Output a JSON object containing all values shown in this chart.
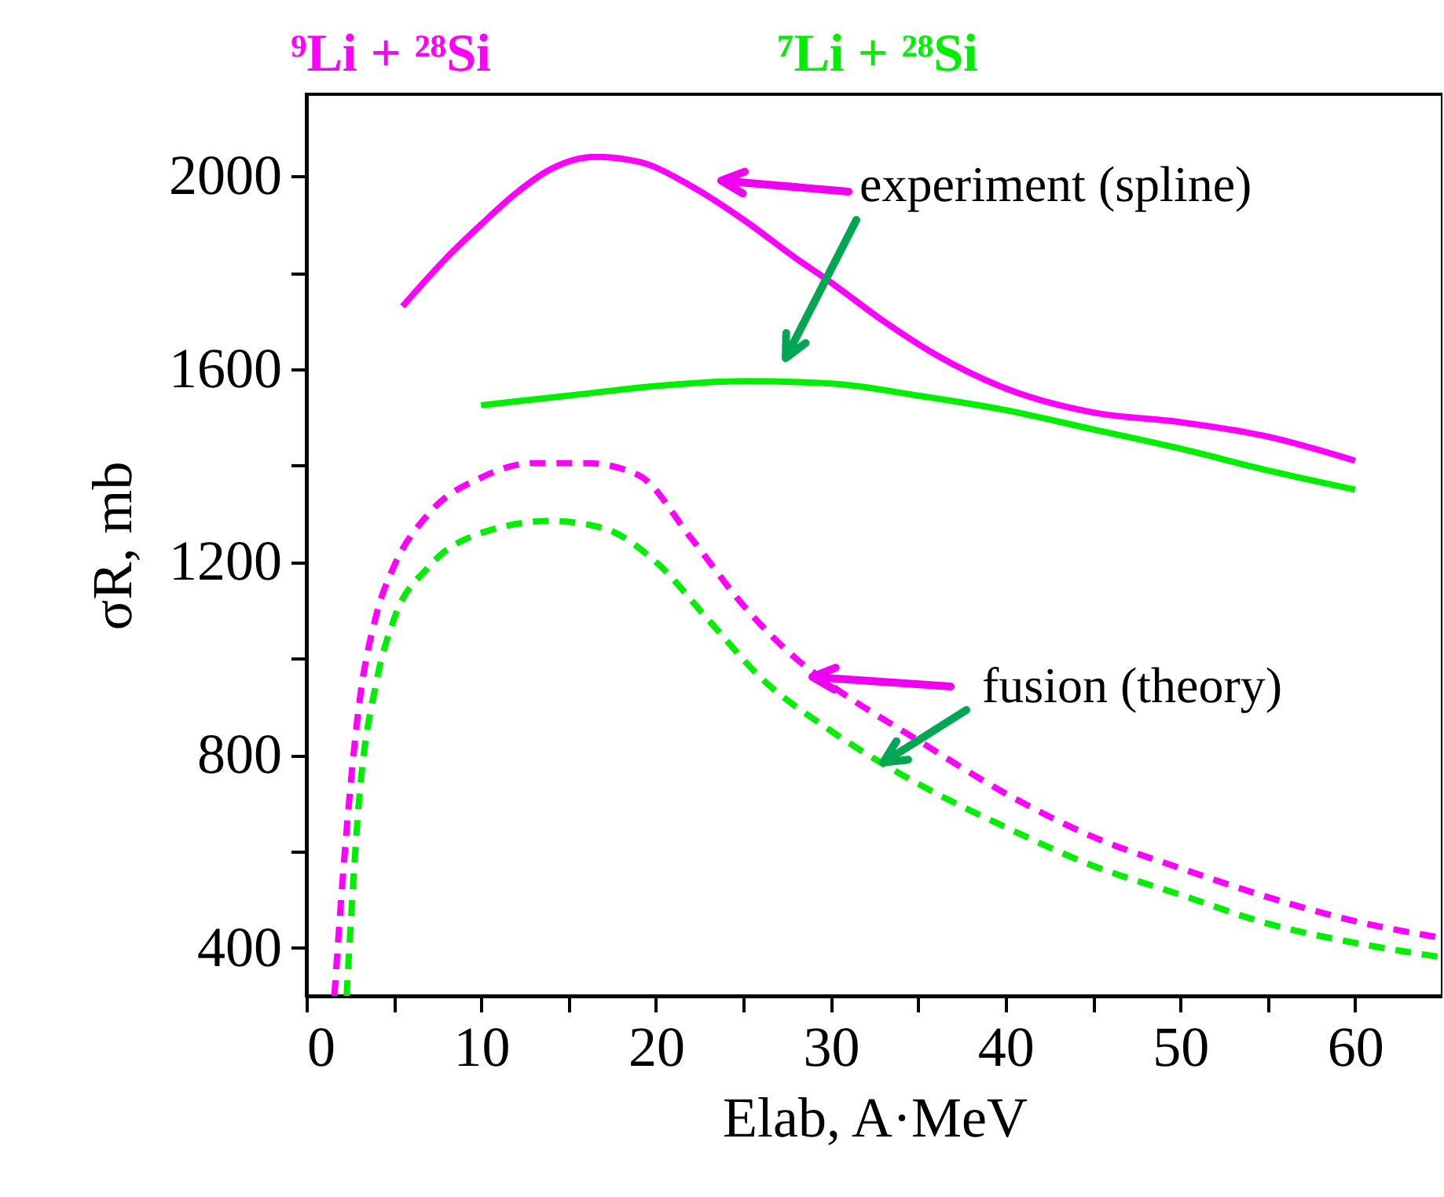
{
  "chart_data": {
    "type": "line",
    "xlabel": "Elab, A·MeV",
    "ylabel": "σR, mb",
    "xlim": [
      0,
      65
    ],
    "ylim": [
      300,
      2170
    ],
    "xticks": [
      0,
      {
        "value": 5,
        "label": null
      },
      10,
      {
        "value": 15,
        "label": null
      },
      20,
      {
        "value": 25,
        "label": null
      },
      30,
      {
        "value": 35,
        "label": null
      },
      40,
      {
        "value": 45,
        "label": null
      },
      50,
      {
        "value": 55,
        "label": null
      },
      60
    ],
    "yticks": [
      400,
      {
        "value": 600,
        "label": null
      },
      800,
      {
        "value": 1000,
        "label": null
      },
      1200,
      {
        "value": 1400,
        "label": null
      },
      1600,
      {
        "value": 1800,
        "label": null
      },
      2000
    ],
    "grid": false,
    "legend": "top",
    "annotations": [
      "experiment (spline)",
      {
        "text": "fusion (theory)",
        "x": 33,
        "y": 784
      }
    ],
    "series": [
      {
        "name": "⁹Li + ²⁸Si",
        "color": "#ff00ff",
        "line_style": "solid",
        "x": [
          5.5,
          8,
          10,
          12,
          14,
          16.5,
          19,
          22,
          25,
          28,
          30,
          33,
          36,
          40,
          45,
          50,
          55,
          60
        ],
        "values": [
          1730,
          1830,
          1900,
          1965,
          2015,
          2040,
          2030,
          1980,
          1910,
          1830,
          1780,
          1700,
          1630,
          1560,
          1510,
          1490,
          1460,
          1410
        ]
      },
      {
        "name": "⁷Li + ²⁸Si",
        "color": "#00ee00",
        "line_style": "solid",
        "x": [
          10,
          15,
          20,
          25,
          30,
          35,
          40,
          45,
          50,
          55,
          60
        ],
        "values": [
          1525,
          1545,
          1565,
          1575,
          1570,
          1545,
          1515,
          1475,
          1435,
          1390,
          1350
        ]
      },
      {
        "color": "#ff00ff",
        "line_style": "dashed",
        "x": [
          1.6,
          2.2,
          3,
          4,
          5,
          7,
          10,
          13,
          16,
          19,
          22,
          25,
          28,
          30,
          35,
          40,
          45,
          50,
          55,
          60,
          65
        ],
        "values": [
          300,
          600,
          900,
          1090,
          1190,
          1300,
          1375,
          1405,
          1405,
          1380,
          1250,
          1110,
          1000,
          945,
          830,
          720,
          630,
          565,
          505,
          455,
          420
        ]
      },
      {
        "color": "#00ee00",
        "line_style": "dashed",
        "x": [
          2.3,
          3,
          4,
          5,
          7,
          10,
          14,
          17,
          20,
          23,
          26,
          30,
          35,
          40,
          45,
          50,
          55,
          60,
          65
        ],
        "values": [
          300,
          700,
          950,
          1080,
          1190,
          1260,
          1285,
          1270,
          1200,
          1080,
          960,
          850,
          740,
          650,
          570,
          510,
          450,
          410,
          380
        ]
      }
    ]
  }
}
